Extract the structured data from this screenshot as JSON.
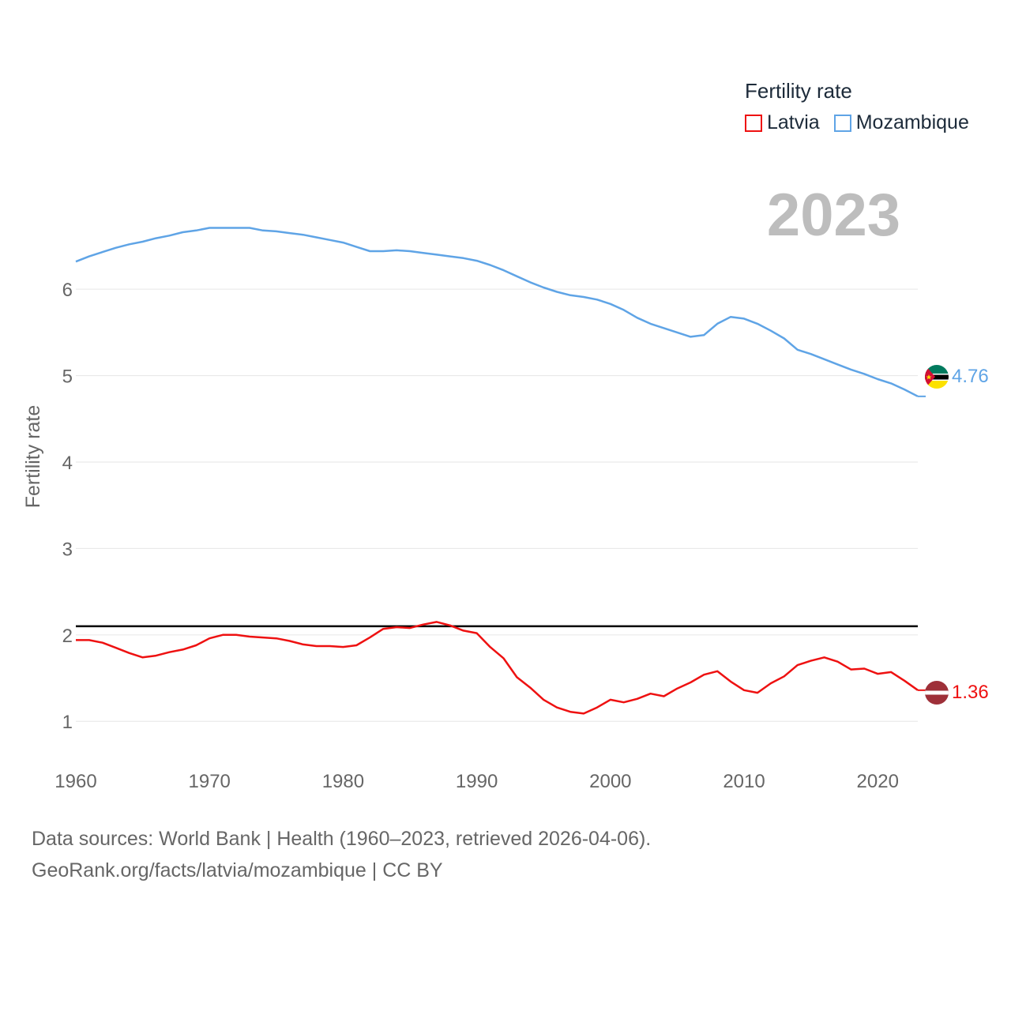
{
  "legend": {
    "title": "Fertility rate",
    "items": [
      {
        "label": "Latvia",
        "color": "#ee1111"
      },
      {
        "label": "Mozambique",
        "color": "#5fa4e6"
      }
    ]
  },
  "year_label": "2023",
  "sources": {
    "line1": "Data sources: World Bank | Health (1960–2023, retrieved 2026-04-06).",
    "line2": "GeoRank.org/facts/latvia/mozambique | CC BY"
  },
  "chart_data": {
    "type": "line",
    "title": "Fertility rate",
    "xlabel": "",
    "ylabel": "Fertility rate",
    "xlim": [
      1960,
      2023
    ],
    "ylim": [
      0.6,
      7.4
    ],
    "x_ticks": [
      "1960",
      "1970",
      "1980",
      "1990",
      "2000",
      "2010",
      "2020"
    ],
    "y_ticks": [
      "1",
      "2",
      "3",
      "4",
      "5",
      "6"
    ],
    "grid": true,
    "reference_line": {
      "value": 2.1,
      "color": "#000000"
    },
    "x": [
      1960,
      1961,
      1962,
      1963,
      1964,
      1965,
      1966,
      1967,
      1968,
      1969,
      1970,
      1971,
      1972,
      1973,
      1974,
      1975,
      1976,
      1977,
      1978,
      1979,
      1980,
      1981,
      1982,
      1983,
      1984,
      1985,
      1986,
      1987,
      1988,
      1989,
      1990,
      1991,
      1992,
      1993,
      1994,
      1995,
      1996,
      1997,
      1998,
      1999,
      2000,
      2001,
      2002,
      2003,
      2004,
      2005,
      2006,
      2007,
      2008,
      2009,
      2010,
      2011,
      2012,
      2013,
      2014,
      2015,
      2016,
      2017,
      2018,
      2019,
      2020,
      2021,
      2022,
      2023
    ],
    "series": [
      {
        "name": "Latvia",
        "color": "#ee1111",
        "end_label": "1.36",
        "values": [
          1.94,
          1.94,
          1.91,
          1.85,
          1.79,
          1.74,
          1.76,
          1.8,
          1.83,
          1.88,
          1.96,
          2.0,
          2.0,
          1.98,
          1.97,
          1.96,
          1.93,
          1.89,
          1.87,
          1.87,
          1.86,
          1.88,
          1.97,
          2.07,
          2.09,
          2.08,
          2.12,
          2.15,
          2.11,
          2.05,
          2.02,
          1.86,
          1.73,
          1.51,
          1.39,
          1.25,
          1.16,
          1.11,
          1.09,
          1.16,
          1.25,
          1.22,
          1.26,
          1.32,
          1.29,
          1.38,
          1.45,
          1.54,
          1.58,
          1.46,
          1.36,
          1.33,
          1.44,
          1.52,
          1.65,
          1.7,
          1.74,
          1.69,
          1.6,
          1.61,
          1.55,
          1.57,
          1.47,
          1.36
        ]
      },
      {
        "name": "Mozambique",
        "color": "#5fa4e6",
        "end_label": "4.76",
        "values": [
          6.32,
          6.38,
          6.43,
          6.48,
          6.52,
          6.55,
          6.59,
          6.62,
          6.66,
          6.68,
          6.71,
          6.71,
          6.71,
          6.71,
          6.68,
          6.67,
          6.65,
          6.63,
          6.6,
          6.57,
          6.54,
          6.49,
          6.44,
          6.44,
          6.45,
          6.44,
          6.42,
          6.4,
          6.38,
          6.36,
          6.33,
          6.28,
          6.22,
          6.15,
          6.08,
          6.02,
          5.97,
          5.93,
          5.91,
          5.88,
          5.83,
          5.76,
          5.67,
          5.6,
          5.55,
          5.5,
          5.45,
          5.47,
          5.6,
          5.68,
          5.66,
          5.6,
          5.52,
          5.43,
          5.3,
          5.25,
          5.19,
          5.13,
          5.07,
          5.02,
          4.96,
          4.91,
          4.84,
          4.76
        ]
      }
    ]
  }
}
